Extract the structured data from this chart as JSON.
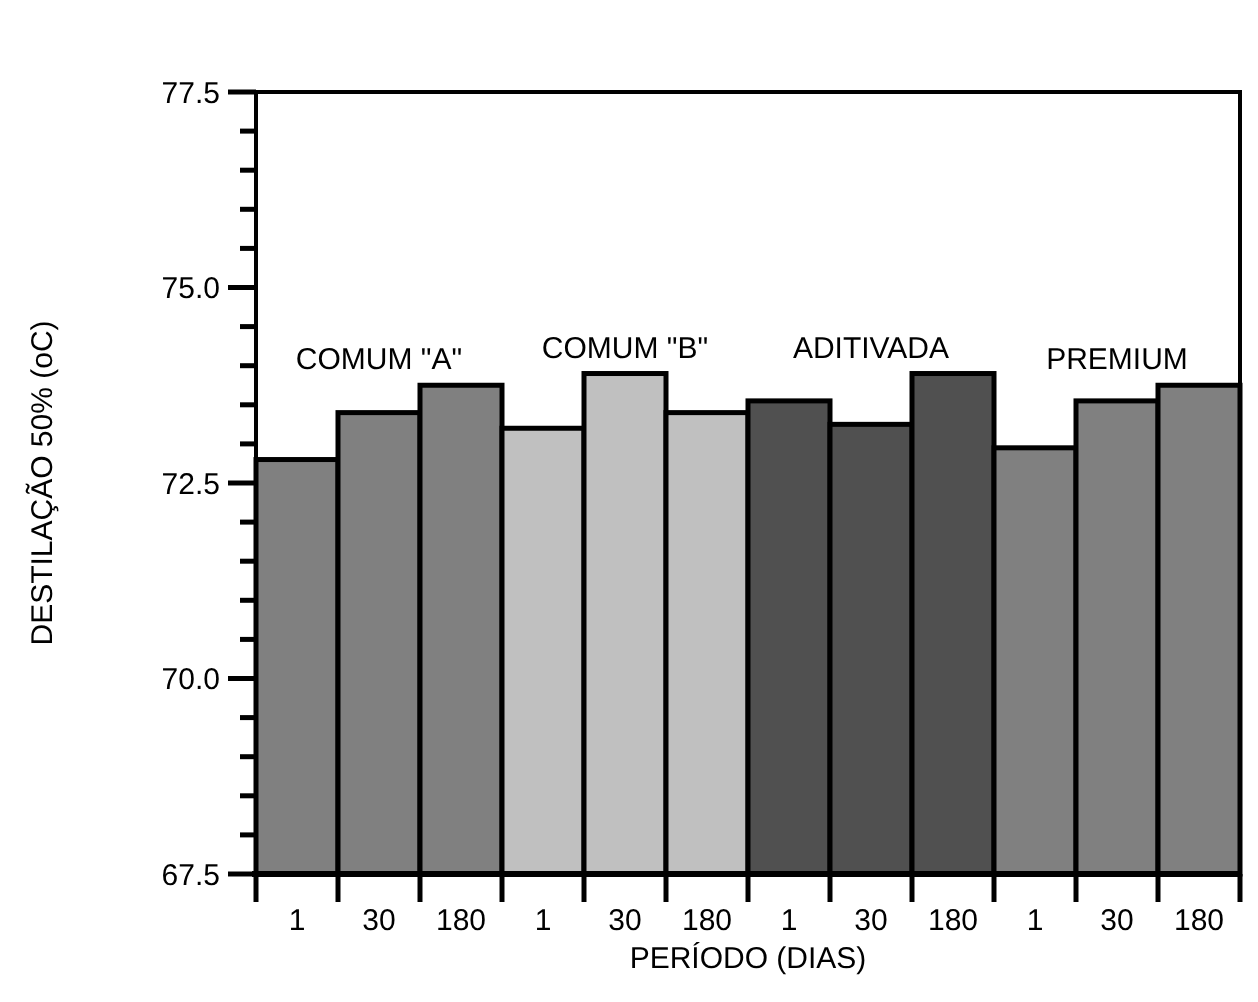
{
  "chart_data": {
    "type": "bar",
    "xlabel": "PERÍODO (DIAS)",
    "ylabel": "DESTILAÇÃO 50% (oC)",
    "categories": [
      "1",
      "30",
      "180",
      "1",
      "30",
      "180",
      "1",
      "30",
      "180",
      "1",
      "30",
      "180"
    ],
    "values": [
      72.8,
      73.4,
      73.75,
      73.2,
      73.9,
      73.4,
      73.55,
      73.25,
      73.9,
      72.95,
      73.55,
      73.75
    ],
    "colors": [
      "#808080",
      "#808080",
      "#808080",
      "#c0c0c0",
      "#c0c0c0",
      "#c0c0c0",
      "#505050",
      "#505050",
      "#505050",
      "#808080",
      "#808080",
      "#808080"
    ],
    "ylim": [
      67.5,
      77.5
    ],
    "yticks": [
      67.5,
      {
        "value": 68,
        "label": null
      },
      {
        "value": 68.5,
        "label": null
      },
      {
        "value": 69,
        "label": null
      },
      {
        "value": 69.5,
        "label": null
      },
      {
        "value": 70,
        "label": "70.0"
      },
      {
        "value": 70.5,
        "label": null
      },
      {
        "value": 71,
        "label": null
      },
      {
        "value": 71.5,
        "label": null
      },
      {
        "value": 72,
        "label": null
      },
      72.5,
      {
        "value": 73,
        "label": null
      },
      {
        "value": 73.5,
        "label": null
      },
      {
        "value": 74,
        "label": null
      },
      {
        "value": 74.5,
        "label": null
      },
      {
        "value": 75,
        "label": "75.0"
      },
      {
        "value": 75.5,
        "label": null
      },
      {
        "value": 76,
        "label": null
      },
      {
        "value": 76.5,
        "label": null
      },
      {
        "value": 77,
        "label": null
      },
      77.5
    ],
    "annotations": [
      "COMUM \"A\"",
      "COMUM \"B\"",
      "ADITIVADA",
      "PREMIUM"
    ],
    "grid": false
  }
}
